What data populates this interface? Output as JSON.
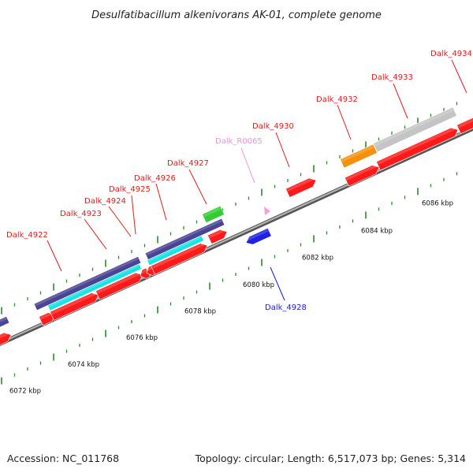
{
  "title": "Desulfatibacillum alkenivorans AK-01, complete genome",
  "footer": {
    "accession": "Accession: NC_011768",
    "topology": "Topology: circular; Length: 6,517,073 bp; Genes: 5,314"
  },
  "scale_labels": [
    "6072 kbp",
    "6074 kbp",
    "6076 kbp",
    "6078 kbp",
    "6080 kbp",
    "6082 kbp",
    "6084 kbp",
    "6086 kbp"
  ],
  "colors": {
    "cds": "#ff1a1a",
    "cds_blue": "#1f22e0",
    "gene_purple": "#4b4393",
    "gene_cyan": "#14e4e4",
    "gene_green": "#33cc33",
    "gene_orange": "#f5900a",
    "gene_gray": "#c4c4c4",
    "ncrna_pink": "#f6a2da",
    "label_red": "#e21a1a",
    "label_blue": "#1818d8",
    "label_pink": "#f590d2",
    "tick": "#2a8a2a",
    "backbone": "#888888"
  },
  "gene_labels": [
    {
      "name": "Dalk_4922",
      "color": "red"
    },
    {
      "name": "Dalk_4923",
      "color": "red"
    },
    {
      "name": "Dalk_4924",
      "color": "red"
    },
    {
      "name": "Dalk_4925",
      "color": "red"
    },
    {
      "name": "Dalk_4926",
      "color": "red"
    },
    {
      "name": "Dalk_4927",
      "color": "red"
    },
    {
      "name": "Dalk_R0065",
      "color": "pink"
    },
    {
      "name": "Dalk_4930",
      "color": "red"
    },
    {
      "name": "Dalk_4932",
      "color": "red"
    },
    {
      "name": "Dalk_4933",
      "color": "red"
    },
    {
      "name": "Dalk_4934",
      "color": "red"
    },
    {
      "name": "Dalk_4928",
      "color": "blue"
    }
  ]
}
